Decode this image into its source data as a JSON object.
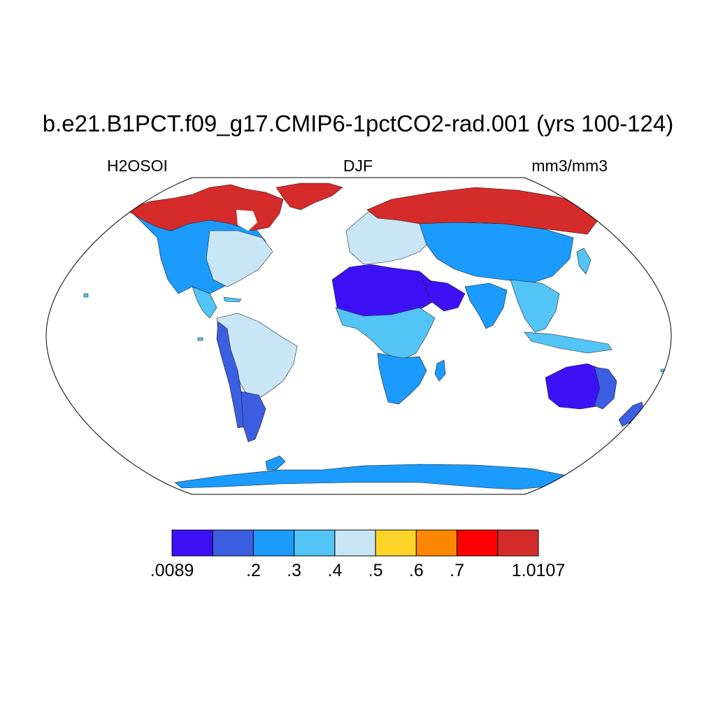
{
  "title": "b.e21.B1PCT.f09_g17.CMIP6-1pctCO2-rad.001 (yrs 100-124)",
  "subtitle_left": "H2OSOI",
  "subtitle_center": "DJF",
  "subtitle_right": "mm3/mm3",
  "colorbar": {
    "colors": [
      "#3d11f5",
      "#3c5ee3",
      "#1b9bfd",
      "#52c4f5",
      "#c9e6f7",
      "#ffd428",
      "#ff8700",
      "#ff0000",
      "#d52b2b"
    ],
    "labels": [
      ".0089",
      ".2",
      ".3",
      ".4",
      ".5",
      ".6",
      ".7",
      "1.0107"
    ],
    "label_boundary_index": [
      0,
      2,
      3,
      4,
      5,
      6,
      7,
      9
    ]
  },
  "map_data": {
    "projection": "Robinson",
    "variable": "H2OSOI",
    "season": "DJF",
    "regions": [
      {
        "name": "north-america-arctic",
        "level": 8
      },
      {
        "name": "north-america-east",
        "level": 4
      },
      {
        "name": "north-america-west",
        "level": 2
      },
      {
        "name": "central-america",
        "level": 3
      },
      {
        "name": "amazon",
        "level": 4
      },
      {
        "name": "andes",
        "level": 1
      },
      {
        "name": "patagonia",
        "level": 1
      },
      {
        "name": "sahara",
        "level": 0
      },
      {
        "name": "arabia",
        "level": 0
      },
      {
        "name": "central-africa",
        "level": 3
      },
      {
        "name": "southern-africa",
        "level": 2
      },
      {
        "name": "europe",
        "level": 4
      },
      {
        "name": "siberia",
        "level": 8
      },
      {
        "name": "central-asia",
        "level": 2
      },
      {
        "name": "india",
        "level": 2
      },
      {
        "name": "southeast-asia",
        "level": 3
      },
      {
        "name": "australia-interior",
        "level": 0
      },
      {
        "name": "australia-east",
        "level": 1
      },
      {
        "name": "greenland",
        "level": 8
      },
      {
        "name": "antarctica-coast",
        "level": 2
      }
    ]
  }
}
